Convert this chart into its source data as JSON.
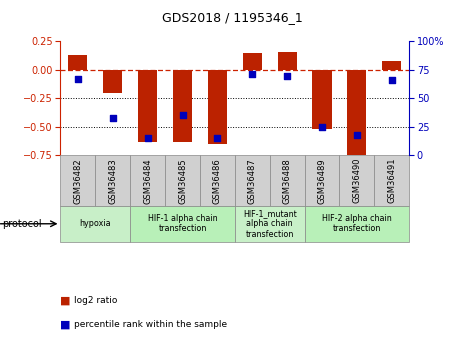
{
  "title": "GDS2018 / 1195346_1",
  "samples": [
    "GSM36482",
    "GSM36483",
    "GSM36484",
    "GSM36485",
    "GSM36486",
    "GSM36487",
    "GSM36488",
    "GSM36489",
    "GSM36490",
    "GSM36491"
  ],
  "log2_ratio": [
    0.13,
    -0.2,
    -0.63,
    -0.63,
    -0.65,
    0.15,
    0.16,
    -0.52,
    -0.82,
    0.08
  ],
  "percentile_rank": [
    67,
    33,
    15,
    35,
    15,
    71,
    70,
    25,
    18,
    66
  ],
  "ylim_left": [
    -0.75,
    0.25
  ],
  "ylim_right": [
    0,
    100
  ],
  "yticks_left": [
    -0.75,
    -0.5,
    -0.25,
    0.0,
    0.25
  ],
  "yticks_right": [
    0,
    25,
    50,
    75,
    100
  ],
  "bar_color": "#bb2200",
  "dot_color": "#0000bb",
  "hline_color": "#cc2200",
  "dotted_line_color": "#000000",
  "bar_width": 0.55,
  "protocols": [
    {
      "label": "hypoxia",
      "start": 0,
      "end": 1,
      "color": "#c8efc8"
    },
    {
      "label": "HIF-1 alpha chain\ntransfection",
      "start": 2,
      "end": 4,
      "color": "#b8f0b8"
    },
    {
      "label": "HIF-1_mutant\nalpha chain\ntransfection",
      "start": 5,
      "end": 6,
      "color": "#c8f0c8"
    },
    {
      "label": "HIF-2 alpha chain\ntransfection",
      "start": 7,
      "end": 9,
      "color": "#b8f0b8"
    }
  ],
  "legend_bar_label": "log2 ratio",
  "legend_dot_label": "percentile rank within the sample",
  "protocol_label": "protocol",
  "sample_box_color": "#d0d0d0",
  "sample_box_edge": "#888888"
}
